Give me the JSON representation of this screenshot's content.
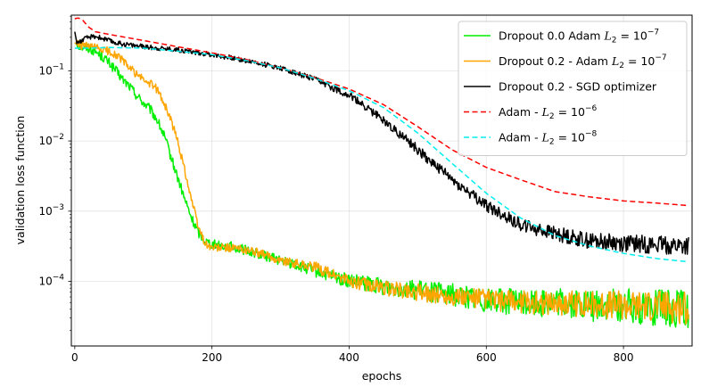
{
  "chart_data": {
    "type": "line",
    "title": "",
    "xlabel": "epochs",
    "ylabel": "validation loss function",
    "xlim": [
      -5,
      900
    ],
    "ylim": [
      1.2e-05,
      0.62
    ],
    "yscale": "log",
    "grid": true,
    "legend_position": "top-right",
    "x_ticks": [
      0,
      200,
      400,
      600,
      800
    ],
    "x_tick_labels": [
      "0",
      "200",
      "400",
      "600",
      "800"
    ],
    "y_ticks": [
      0.0001,
      0.001,
      0.01,
      0.1
    ],
    "y_tick_labels": [
      {
        "base": "10",
        "exp": "−4"
      },
      {
        "base": "10",
        "exp": "−3"
      },
      {
        "base": "10",
        "exp": "−2"
      },
      {
        "base": "10",
        "exp": "−1"
      }
    ],
    "series": [
      {
        "name": "Dropout 0.0 Adam L2=10^-7",
        "legend": {
          "prefix": "Dropout 0.0 Adam ",
          "var": "L",
          "sub": "2",
          "eq": " = 10",
          "exp": "−7"
        },
        "color": "#00ee00",
        "dash": "solid",
        "noise": 0.07,
        "points": [
          [
            0,
            0.25
          ],
          [
            10,
            0.22
          ],
          [
            20,
            0.21
          ],
          [
            30,
            0.19
          ],
          [
            40,
            0.16
          ],
          [
            50,
            0.13
          ],
          [
            60,
            0.1
          ],
          [
            70,
            0.075
          ],
          [
            80,
            0.06
          ],
          [
            90,
            0.045
          ],
          [
            100,
            0.035
          ],
          [
            110,
            0.028
          ],
          [
            120,
            0.02
          ],
          [
            130,
            0.012
          ],
          [
            140,
            0.006
          ],
          [
            150,
            0.003
          ],
          [
            160,
            0.0015
          ],
          [
            170,
            0.0008
          ],
          [
            180,
            0.0005
          ],
          [
            190,
            0.00038
          ],
          [
            200,
            0.00034
          ],
          [
            230,
            0.00031
          ],
          [
            260,
            0.00026
          ],
          [
            300,
            0.0002
          ],
          [
            350,
            0.00014
          ],
          [
            400,
            0.0001
          ],
          [
            450,
            8.5e-05
          ],
          [
            500,
            7.5e-05
          ],
          [
            550,
            6.5e-05
          ],
          [
            600,
            5.5e-05
          ],
          [
            650,
            5e-05
          ],
          [
            700,
            5e-05
          ],
          [
            750,
            4.5e-05
          ],
          [
            800,
            4.5e-05
          ],
          [
            850,
            4.2e-05
          ],
          [
            895,
            4e-05
          ]
        ]
      },
      {
        "name": "Dropout 0.2 - Adam L2=10^-7",
        "legend": {
          "prefix": "Dropout 0.2 - Adam ",
          "var": "L",
          "sub": "2",
          "eq": " = 10",
          "exp": "−7"
        },
        "color": "#ffa500",
        "dash": "solid",
        "noise": 0.06,
        "points": [
          [
            0,
            0.25
          ],
          [
            10,
            0.23
          ],
          [
            20,
            0.22
          ],
          [
            30,
            0.21
          ],
          [
            40,
            0.2
          ],
          [
            50,
            0.19
          ],
          [
            60,
            0.17
          ],
          [
            70,
            0.14
          ],
          [
            80,
            0.11
          ],
          [
            90,
            0.09
          ],
          [
            100,
            0.075
          ],
          [
            110,
            0.065
          ],
          [
            120,
            0.055
          ],
          [
            130,
            0.035
          ],
          [
            140,
            0.02
          ],
          [
            150,
            0.01
          ],
          [
            160,
            0.004
          ],
          [
            170,
            0.0015
          ],
          [
            180,
            0.0006
          ],
          [
            190,
            0.00035
          ],
          [
            200,
            0.0003
          ],
          [
            230,
            0.0003
          ],
          [
            260,
            0.00027
          ],
          [
            300,
            0.0002
          ],
          [
            350,
            0.00016
          ],
          [
            400,
            0.0001
          ],
          [
            450,
            8e-05
          ],
          [
            500,
            7e-05
          ],
          [
            550,
            6e-05
          ],
          [
            600,
            5.5e-05
          ],
          [
            650,
            5e-05
          ],
          [
            700,
            5e-05
          ],
          [
            750,
            4.8e-05
          ],
          [
            800,
            4.5e-05
          ],
          [
            850,
            4.5e-05
          ],
          [
            895,
            4.2e-05
          ]
        ]
      },
      {
        "name": "Dropout 0.2 - SGD optimizer",
        "legend": {
          "prefix": "Dropout 0.2 - SGD optimizer"
        },
        "color": "#000000",
        "dash": "solid",
        "noise": 0.035,
        "points": [
          [
            0,
            0.36
          ],
          [
            3,
            0.25
          ],
          [
            10,
            0.27
          ],
          [
            20,
            0.3
          ],
          [
            30,
            0.31
          ],
          [
            40,
            0.29
          ],
          [
            60,
            0.25
          ],
          [
            100,
            0.22
          ],
          [
            150,
            0.2
          ],
          [
            200,
            0.17
          ],
          [
            250,
            0.14
          ],
          [
            300,
            0.11
          ],
          [
            350,
            0.075
          ],
          [
            400,
            0.045
          ],
          [
            450,
            0.02
          ],
          [
            500,
            0.0075
          ],
          [
            550,
            0.0028
          ],
          [
            600,
            0.0012
          ],
          [
            650,
            0.00065
          ],
          [
            700,
            0.00048
          ],
          [
            750,
            0.00038
          ],
          [
            800,
            0.00035
          ],
          [
            850,
            0.00033
          ],
          [
            895,
            0.00032
          ]
        ]
      },
      {
        "name": "Adam - L2=10^-6",
        "legend": {
          "prefix": "Adam - ",
          "var": "L",
          "sub": "2",
          "eq": " = 10",
          "exp": "−6"
        },
        "color": "#ff0000",
        "dash": "6,3.5",
        "noise": 0.0,
        "points": [
          [
            0,
            0.55
          ],
          [
            5,
            0.57
          ],
          [
            12,
            0.52
          ],
          [
            20,
            0.42
          ],
          [
            30,
            0.36
          ],
          [
            50,
            0.33
          ],
          [
            100,
            0.27
          ],
          [
            150,
            0.22
          ],
          [
            200,
            0.18
          ],
          [
            250,
            0.145
          ],
          [
            300,
            0.11
          ],
          [
            350,
            0.08
          ],
          [
            400,
            0.055
          ],
          [
            450,
            0.033
          ],
          [
            500,
            0.016
          ],
          [
            550,
            0.0075
          ],
          [
            600,
            0.0042
          ],
          [
            650,
            0.0028
          ],
          [
            700,
            0.0019
          ],
          [
            750,
            0.0016
          ],
          [
            800,
            0.0014
          ],
          [
            850,
            0.0013
          ],
          [
            895,
            0.0012
          ]
        ]
      },
      {
        "name": "Adam - L2=10^-8",
        "legend": {
          "prefix": "Adam - ",
          "var": "L",
          "sub": "2",
          "eq": " = 10",
          "exp": "−8"
        },
        "color": "#00eeee",
        "dash": "6,3.5",
        "noise": 0.0,
        "points": [
          [
            0,
            0.21
          ],
          [
            20,
            0.21
          ],
          [
            50,
            0.215
          ],
          [
            100,
            0.21
          ],
          [
            150,
            0.19
          ],
          [
            200,
            0.17
          ],
          [
            250,
            0.14
          ],
          [
            300,
            0.11
          ],
          [
            350,
            0.078
          ],
          [
            400,
            0.052
          ],
          [
            450,
            0.03
          ],
          [
            500,
            0.013
          ],
          [
            550,
            0.0048
          ],
          [
            600,
            0.0018
          ],
          [
            650,
            0.0008
          ],
          [
            700,
            0.00045
          ],
          [
            750,
            0.00032
          ],
          [
            800,
            0.00025
          ],
          [
            850,
            0.00021
          ],
          [
            895,
            0.00019
          ]
        ]
      }
    ]
  }
}
